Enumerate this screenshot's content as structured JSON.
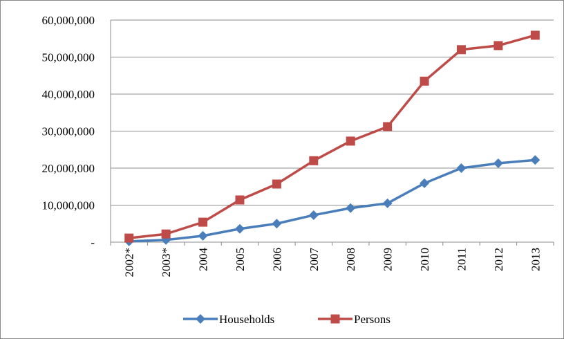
{
  "chart_data": {
    "type": "line",
    "categories": [
      "2002*",
      "2003*",
      "2004",
      "2005",
      "2006",
      "2007",
      "2008",
      "2009",
      "2010",
      "2011",
      "2012",
      "2013"
    ],
    "series": [
      {
        "name": "Households",
        "color": "#4a7ebb",
        "marker": "diamond",
        "values": [
          200000,
          600000,
          1700000,
          3600000,
          5000000,
          7300000,
          9200000,
          10500000,
          15900000,
          20000000,
          21300000,
          22200000
        ]
      },
      {
        "name": "Persons",
        "color": "#be4b48",
        "marker": "square",
        "values": [
          1100000,
          2200000,
          5400000,
          11400000,
          15700000,
          22000000,
          27300000,
          31200000,
          43500000,
          52000000,
          53100000,
          55900000
        ]
      }
    ],
    "ylim": [
      0,
      60000000
    ],
    "yticks": [
      {
        "value": 0,
        "label": "-"
      },
      {
        "value": 10000000,
        "label": "10,000,000"
      },
      {
        "value": 20000000,
        "label": "20,000,000"
      },
      {
        "value": 30000000,
        "label": "30,000,000"
      },
      {
        "value": 40000000,
        "label": "40,000,000"
      },
      {
        "value": 50000000,
        "label": "50,000,000"
      },
      {
        "value": 60000000,
        "label": "60,000,000"
      }
    ],
    "grid": true,
    "legend": "bottom"
  }
}
